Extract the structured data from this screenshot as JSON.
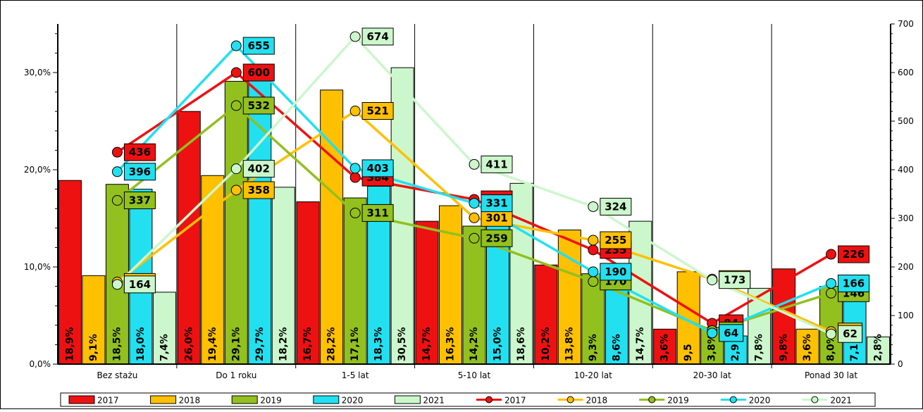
{
  "chart_data": {
    "type": "bar",
    "categories": [
      "Bez stażu",
      "Do 1 roku",
      "1-5 lat",
      "5-10 lat",
      "10-20 lat",
      "20-30 lat",
      "Ponad 30 lat"
    ],
    "bar_series": [
      {
        "name": "2017",
        "color": "#ee1111",
        "values": [
          18.9,
          26.0,
          16.7,
          14.7,
          10.2,
          3.6,
          9.8
        ],
        "labels": [
          "18,9%",
          "26,0%",
          "16,7%",
          "14,7%",
          "10,2%",
          "3,6%",
          "9,8%"
        ]
      },
      {
        "name": "2018",
        "color": "#ffc000",
        "values": [
          9.1,
          19.4,
          28.2,
          16.3,
          13.8,
          9.5,
          3.6
        ],
        "labels": [
          "9,1%",
          "19,4%",
          "28,2%",
          "16,3%",
          "13,8%",
          "9,5",
          "3,6%"
        ]
      },
      {
        "name": "2019",
        "color": "#92c01f",
        "values": [
          18.5,
          29.1,
          17.1,
          14.2,
          9.3,
          3.8,
          8.0
        ],
        "labels": [
          "18,5%",
          "29,1%",
          "17,1%",
          "14,2%",
          "9,3%",
          "3,8%",
          "8,0%"
        ]
      },
      {
        "name": "2020",
        "color": "#22e0f0",
        "values": [
          18.0,
          29.7,
          18.3,
          15.0,
          8.6,
          2.9,
          7.1
        ],
        "labels": [
          "18,0%",
          "29,7%",
          "18,3%",
          "15,0%",
          "8,6%",
          "2,9",
          "7,1"
        ]
      },
      {
        "name": "2021",
        "color": "#ccf7cc",
        "values": [
          7.4,
          18.2,
          30.5,
          18.6,
          14.7,
          7.8,
          2.8
        ],
        "labels": [
          "7,4%",
          "18,2%",
          "30,5%",
          "18,6%",
          "14,7%",
          "7,8%",
          "2,8%"
        ]
      }
    ],
    "line_series": [
      {
        "name": "2017",
        "color": "#ee1111",
        "values": [
          436,
          600,
          384,
          339,
          235,
          84,
          226
        ]
      },
      {
        "name": "2018",
        "color": "#ffc000",
        "values": [
          169,
          358,
          521,
          301,
          255,
          175,
          67
        ]
      },
      {
        "name": "2019",
        "color": "#92c01f",
        "values": [
          337,
          532,
          311,
          259,
          170,
          69,
          146
        ]
      },
      {
        "name": "2020",
        "color": "#22e0f0",
        "values": [
          396,
          655,
          403,
          331,
          190,
          64,
          166
        ]
      },
      {
        "name": "2021",
        "color": "#ccf7cc",
        "values": [
          164,
          402,
          674,
          411,
          324,
          173,
          62
        ]
      }
    ],
    "y_left": {
      "min": 0,
      "max": 35,
      "ticks": [
        "0,0%",
        "10,0%",
        "20,0%",
        "30,0%"
      ],
      "tick_values": [
        0,
        10,
        20,
        30
      ]
    },
    "y_right": {
      "min": 0,
      "max": 700,
      "ticks": [
        "0",
        "100",
        "200",
        "300",
        "400",
        "500",
        "600",
        "700"
      ],
      "tick_values": [
        0,
        100,
        200,
        300,
        400,
        500,
        600,
        700
      ]
    },
    "grid": "vertical category separators",
    "legend": "bottom"
  }
}
